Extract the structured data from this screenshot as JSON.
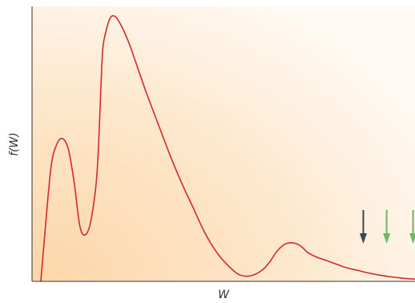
{
  "chart_data": {
    "type": "line",
    "title": "",
    "xlabel": "W",
    "ylabel": "f(W)",
    "xlim": [
      0,
      1
    ],
    "ylim": [
      0,
      1
    ],
    "grid": false,
    "series": [
      {
        "color": "#d42a2a",
        "x": [
          0.023,
          0.035,
          0.05,
          0.065,
          0.08,
          0.095,
          0.11,
          0.125,
          0.14,
          0.155,
          0.17,
          0.18,
          0.185,
          0.195,
          0.205,
          0.215,
          0.225,
          0.24,
          0.255,
          0.27,
          0.285,
          0.3,
          0.33,
          0.36,
          0.39,
          0.42,
          0.45,
          0.48,
          0.51,
          0.54,
          0.57,
          0.6,
          0.62,
          0.64,
          0.66,
          0.68,
          0.7,
          0.72,
          0.74,
          0.76,
          0.78,
          0.8,
          0.82,
          0.85,
          0.88,
          0.91,
          0.94,
          0.97,
          1.0
        ],
        "y": [
          0.0,
          0.2,
          0.42,
          0.5,
          0.519,
          0.48,
          0.36,
          0.2,
          0.17,
          0.23,
          0.4,
          0.71,
          0.85,
          0.92,
          0.96,
          0.965,
          0.95,
          0.91,
          0.86,
          0.8,
          0.74,
          0.68,
          0.57,
          0.46,
          0.36,
          0.27,
          0.18,
          0.11,
          0.06,
          0.025,
          0.02,
          0.04,
          0.07,
          0.11,
          0.135,
          0.14,
          0.13,
          0.105,
          0.09,
          0.08,
          0.07,
          0.06,
          0.05,
          0.04,
          0.03,
          0.022,
          0.016,
          0.011,
          0.008
        ]
      }
    ],
    "markers": [
      {
        "x": 0.865,
        "color": "#3c4750"
      },
      {
        "x": 0.926,
        "color": "#6ab764"
      },
      {
        "x": 0.995,
        "color": "#6ab764"
      }
    ]
  }
}
